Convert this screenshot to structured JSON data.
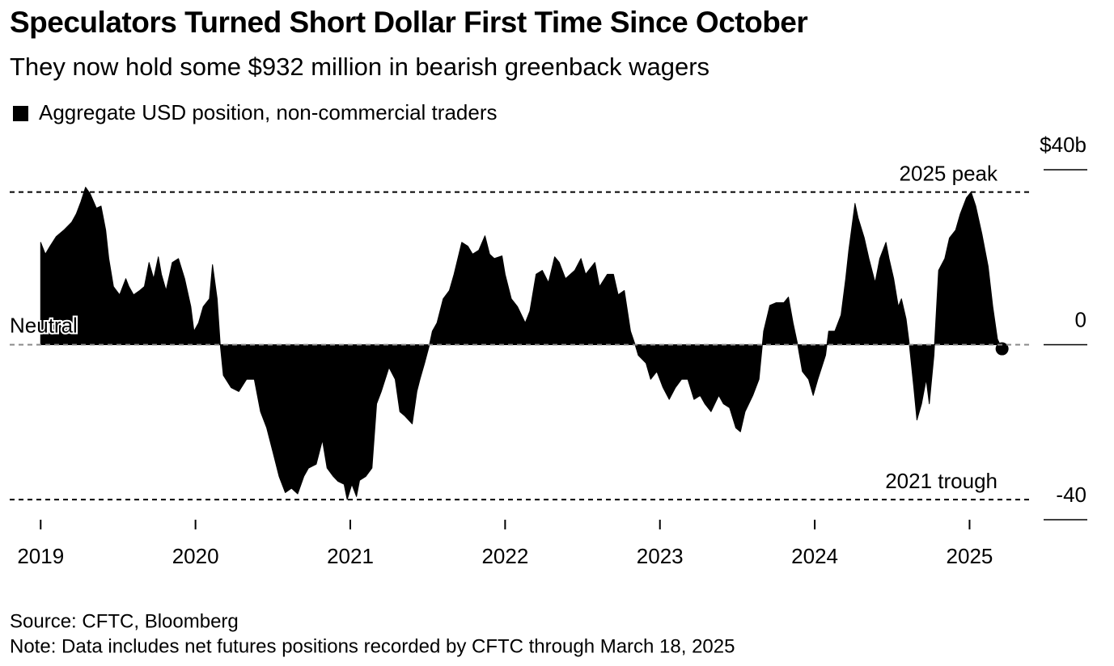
{
  "chart_data": {
    "type": "area",
    "title": "Speculators Turned Short Dollar First Time Since October",
    "subtitle": "They now hold some $932 million in bearish greenback wagers",
    "source": "Source: CFTC, Bloomberg",
    "note": "Note: Data includes net futures positions recorded by CFTC through March 18, 2025",
    "series": [
      {
        "name": "Aggregate USD position, non-commercial traders",
        "color": "#000000",
        "x": [
          2019.0,
          2019.03,
          2019.06,
          2019.1,
          2019.15,
          2019.2,
          2019.23,
          2019.26,
          2019.29,
          2019.32,
          2019.36,
          2019.39,
          2019.42,
          2019.44,
          2019.47,
          2019.51,
          2019.55,
          2019.57,
          2019.6,
          2019.64,
          2019.67,
          2019.7,
          2019.73,
          2019.76,
          2019.78,
          2019.81,
          2019.85,
          2019.89,
          2019.93,
          2019.97,
          2019.99,
          2020.02,
          2020.05,
          2020.09,
          2020.11,
          2020.14,
          2020.16,
          2020.18,
          2020.23,
          2020.28,
          2020.33,
          2020.38,
          2020.42,
          2020.46,
          2020.5,
          2020.54,
          2020.58,
          2020.62,
          2020.66,
          2020.7,
          2020.73,
          2020.78,
          2020.82,
          2020.85,
          2020.89,
          2020.92,
          2020.96,
          2020.98,
          2021.01,
          2021.04,
          2021.06,
          2021.1,
          2021.14,
          2021.17,
          2021.2,
          2021.25,
          2021.29,
          2021.32,
          2021.35,
          2021.4,
          2021.43,
          2021.45,
          2021.48,
          2021.51,
          2021.53,
          2021.56,
          2021.6,
          2021.64,
          2021.67,
          2021.72,
          2021.76,
          2021.79,
          2021.83,
          2021.87,
          2021.9,
          2021.93,
          2021.98,
          2022.0,
          2022.04,
          2022.08,
          2022.13,
          2022.16,
          2022.2,
          2022.24,
          2022.28,
          2022.32,
          2022.35,
          2022.39,
          2022.45,
          2022.49,
          2022.52,
          2022.58,
          2022.61,
          2022.66,
          2022.7,
          2022.73,
          2022.77,
          2022.81,
          2022.84,
          2022.86,
          2022.91,
          2022.94,
          2022.98,
          2023.02,
          2023.06,
          2023.1,
          2023.14,
          2023.18,
          2023.22,
          2023.26,
          2023.29,
          2023.33,
          2023.38,
          2023.41,
          2023.45,
          2023.49,
          2023.52,
          2023.55,
          2023.6,
          2023.64,
          2023.67,
          2023.71,
          2023.75,
          2023.8,
          2023.83,
          2023.86,
          2023.89,
          2023.92,
          2023.96,
          2023.99,
          2024.02,
          2024.07,
          2024.09,
          2024.13,
          2024.17,
          2024.2,
          2024.22,
          2024.26,
          2024.28,
          2024.32,
          2024.35,
          2024.39,
          2024.42,
          2024.46,
          2024.48,
          2024.51,
          2024.54,
          2024.56,
          2024.59,
          2024.61,
          2024.64,
          2024.66,
          2024.69,
          2024.72,
          2024.74,
          2024.77,
          2024.8,
          2024.84,
          2024.87,
          2024.91,
          2024.94,
          2024.98,
          2025.01,
          2025.04,
          2025.08,
          2025.12,
          2025.15,
          2025.18,
          2025.21
        ],
        "values": [
          23.4,
          20.7,
          22.5,
          24.7,
          26.2,
          28.0,
          29.9,
          32.7,
          36.0,
          34.5,
          31.2,
          31.7,
          26.2,
          19.7,
          13.3,
          11.4,
          15.1,
          13.3,
          11.4,
          12.4,
          13.3,
          18.8,
          15.1,
          20.1,
          16.1,
          12.4,
          18.8,
          19.7,
          15.1,
          8.7,
          3.1,
          5.0,
          8.7,
          10.5,
          18.3,
          10.5,
          0,
          -7.0,
          -9.8,
          -10.7,
          -7.9,
          -7.9,
          -15.3,
          -19.0,
          -24.5,
          -30.1,
          -33.8,
          -32.8,
          -34.1,
          -30.1,
          -28.2,
          -27.3,
          -21.8,
          -28.2,
          -30.1,
          -31.2,
          -31.9,
          -35.4,
          -31.9,
          -34.7,
          -31.0,
          -30.1,
          -28.2,
          -13.5,
          -10.7,
          -5.2,
          -7.9,
          -15.3,
          -16.2,
          -18.1,
          -10.7,
          -7.9,
          -4.2,
          -0.2,
          3.1,
          5.0,
          10.5,
          12.4,
          16.1,
          23.4,
          22.5,
          20.7,
          21.6,
          24.9,
          20.7,
          19.7,
          20.3,
          16.1,
          10.5,
          8.7,
          5.0,
          7.7,
          16.1,
          17.0,
          14.2,
          20.1,
          18.8,
          15.1,
          17.0,
          19.7,
          16.1,
          18.8,
          13.3,
          16.1,
          16.1,
          11.4,
          12.4,
          3.1,
          0,
          -2.4,
          -4.2,
          -7.9,
          -6.1,
          -9.8,
          -12.5,
          -9.8,
          -7.9,
          -7.9,
          -12.5,
          -11.6,
          -13.5,
          -15.3,
          -11.6,
          -13.5,
          -14.4,
          -19.0,
          -19.9,
          -15.3,
          -11.6,
          -7.9,
          3.1,
          9.0,
          9.6,
          9.6,
          10.9,
          5.0,
          0,
          -6.1,
          -7.9,
          -11.6,
          -7.9,
          -2.4,
          3.1,
          3.1,
          6.8,
          15.1,
          21.6,
          32.3,
          29.0,
          24.4,
          19.7,
          14.2,
          19.7,
          23.4,
          19.7,
          15.1,
          8.7,
          10.5,
          5.9,
          0.4,
          -9.8,
          -17.2,
          -13.5,
          -7.9,
          -13.5,
          -2.4,
          17.0,
          19.7,
          24.4,
          26.2,
          29.9,
          33.6,
          34.9,
          31.7,
          25.3,
          17.9,
          8.7,
          1.3,
          -0.932
        ]
      }
    ],
    "annotations": [
      {
        "label": "2025 peak",
        "value": 34.9
      },
      {
        "label": "Neutral",
        "value": 0
      },
      {
        "label": "2021 trough",
        "value": -35.4
      }
    ],
    "xlim": [
      2018.8,
      2025.4
    ],
    "xticks": [
      2019,
      2020,
      2021,
      2022,
      2023,
      2024,
      2025
    ],
    "ylim": [
      -40,
      40
    ],
    "yticks": [
      {
        "value": 40,
        "label": "$40b"
      },
      0,
      -40
    ]
  }
}
